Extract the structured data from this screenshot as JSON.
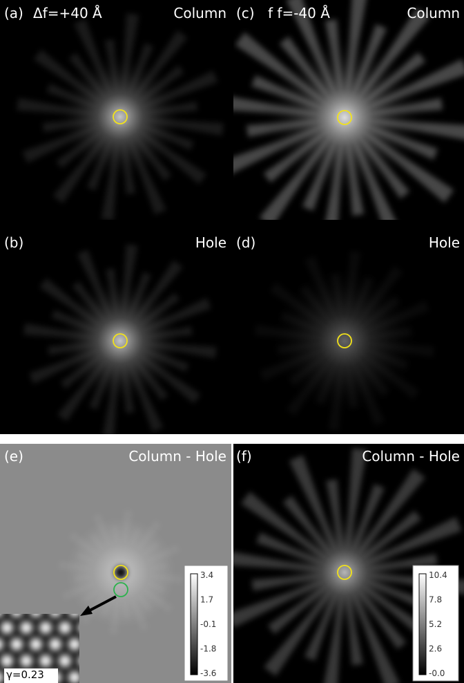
{
  "panels": [
    {
      "label": "(a)",
      "title": "Δf=+40 Å",
      "region": "Column"
    },
    {
      "label": "(c)",
      "title": "f f=-40 Å",
      "region": "Column"
    },
    {
      "label": "(b)",
      "region": "Hole"
    },
    {
      "label": "(d)",
      "region": "Hole"
    },
    {
      "label": "(e)",
      "region": "Column - Hole",
      "colorbar": [
        "3.4",
        "1.7",
        "-0.1",
        "-1.8",
        "-3.6"
      ],
      "inset": "γ=0.23"
    },
    {
      "label": "(f)",
      "region": "Column - Hole",
      "colorbar": [
        "10.4",
        "7.8",
        "5.2",
        "2.6",
        "-0.0"
      ]
    }
  ]
}
